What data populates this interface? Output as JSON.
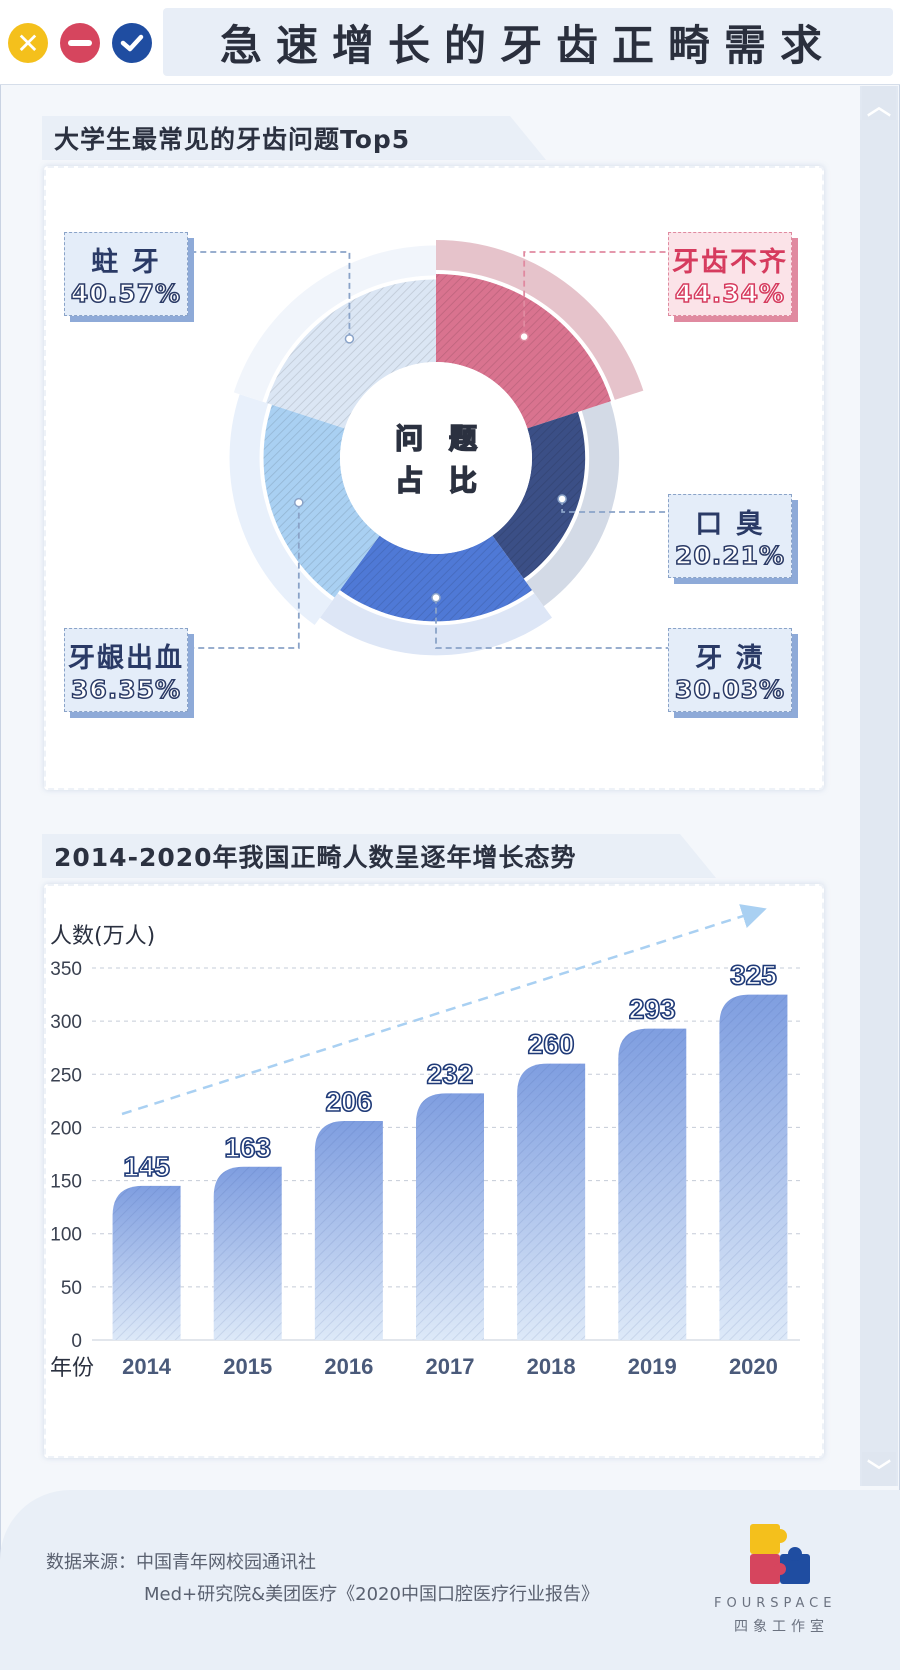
{
  "window": {
    "title": "急速增长的牙齿正畸需求"
  },
  "section1": {
    "title": "大学生最常见的牙齿问题Top5",
    "center_label_line1": "问 题",
    "center_label_line2": "占 比"
  },
  "section2": {
    "title": "2014-2020年我国正畸人数呈逐年增长态势",
    "y_unit": "人数(万人)",
    "x_unit": "年份"
  },
  "colors": {
    "pink": "#d9738f",
    "navy": "#3b4f86",
    "blue": "#4f79d6",
    "light_blue": "#a9d0f2",
    "pale": "#dbe6f4",
    "bar_top": "#7f9ee0",
    "bar_bottom": "#dde9f8"
  },
  "chart_data": [
    {
      "type": "pie",
      "title": "大学生最常见的牙齿问题Top5",
      "categories": [
        "牙齿不齐",
        "口臭",
        "牙渍",
        "牙龈出血",
        "蛀牙"
      ],
      "labels": [
        "牙齿不齐",
        "口 臭",
        "牙 渍",
        "牙龈出血",
        "蛀 牙"
      ],
      "values": [
        44.34,
        20.21,
        30.03,
        36.35,
        40.57
      ],
      "value_labels": [
        "44.34%",
        "20.21%",
        "30.03%",
        "36.35%",
        "40.57%"
      ]
    },
    {
      "type": "bar",
      "title": "2014-2020年我国正畸人数呈逐年增长态势",
      "categories": [
        "2014",
        "2015",
        "2016",
        "2017",
        "2018",
        "2019",
        "2020"
      ],
      "values": [
        145,
        163,
        206,
        232,
        260,
        293,
        325
      ],
      "ylabel": "人数(万人)",
      "xlabel": "年份",
      "ylim": [
        0,
        350
      ],
      "yticks": [
        0,
        50,
        100,
        150,
        200,
        250,
        300,
        350
      ],
      "grid": true
    }
  ],
  "footer": {
    "source_line1": "数据来源：中国青年网校园通讯社",
    "source_line2": "Med+研究院&美团医疗《2020中国口腔医疗行业报告》",
    "brand_en": "FOURSPACE",
    "brand_cn": "四象工作室"
  }
}
